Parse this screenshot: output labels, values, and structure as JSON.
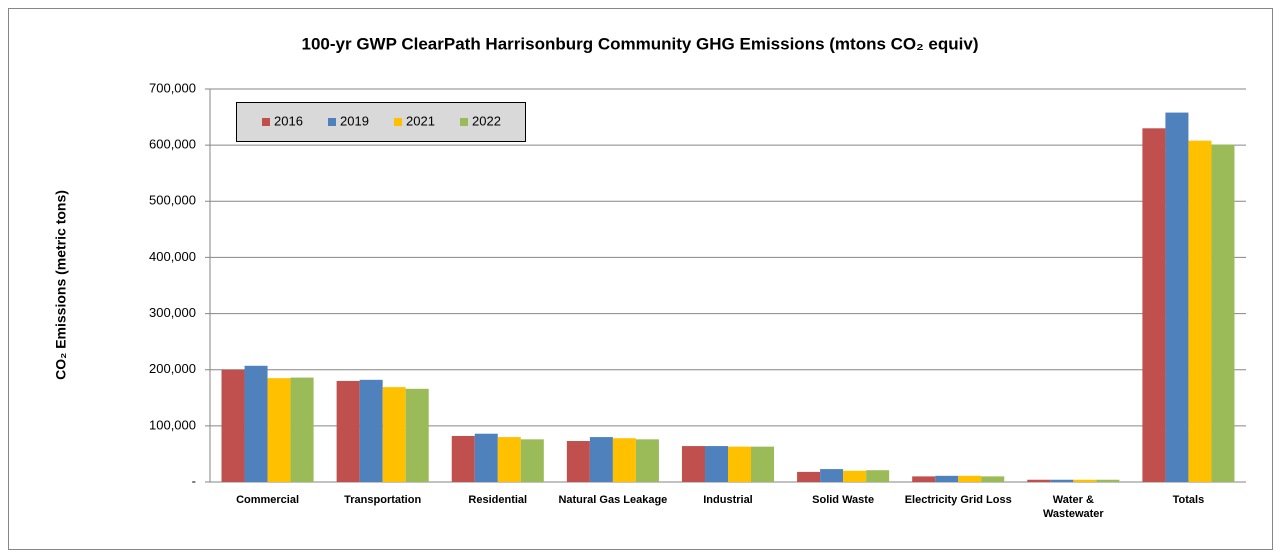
{
  "chart_data": {
    "type": "bar",
    "title": "100-yr GWP ClearPath Harrisonburg Community GHG Emissions (mtons CO₂ equiv)",
    "y_label": "CO₂ Emissions  (metric tons)",
    "categories": [
      "Commercial",
      "Transportation",
      "Residential",
      "Natural Gas Leakage",
      "Industrial",
      "Solid Waste",
      "Electricity Grid Loss",
      "Water &\nWastewater",
      "Totals"
    ],
    "series": [
      {
        "name": "2016",
        "color": "#c0504d",
        "values": [
          200000,
          180000,
          82000,
          73000,
          64000,
          18000,
          10000,
          4000,
          630000
        ]
      },
      {
        "name": "2019",
        "color": "#4f81bd",
        "values": [
          207000,
          182000,
          86000,
          80000,
          64000,
          23000,
          11000,
          4000,
          658000
        ]
      },
      {
        "name": "2021",
        "color": "#ffc000",
        "values": [
          185000,
          169000,
          80000,
          78000,
          63000,
          20000,
          11000,
          4000,
          608000
        ]
      },
      {
        "name": "2022",
        "color": "#9bbb59",
        "values": [
          186000,
          166000,
          76000,
          76000,
          63000,
          21000,
          10000,
          4000,
          601000
        ]
      }
    ],
    "ylim": [
      0,
      700000
    ],
    "yticks": [
      {
        "value": 0,
        "label": "-"
      },
      {
        "value": 100000,
        "label": "100,000"
      },
      {
        "value": 200000,
        "label": "200,000"
      },
      {
        "value": 300000,
        "label": "300,000"
      },
      {
        "value": 400000,
        "label": "400,000"
      },
      {
        "value": 500000,
        "label": "500,000"
      },
      {
        "value": 600000,
        "label": "600,000"
      },
      {
        "value": 700000,
        "label": "700,000"
      }
    ],
    "grid": true,
    "legend": "top-left"
  }
}
